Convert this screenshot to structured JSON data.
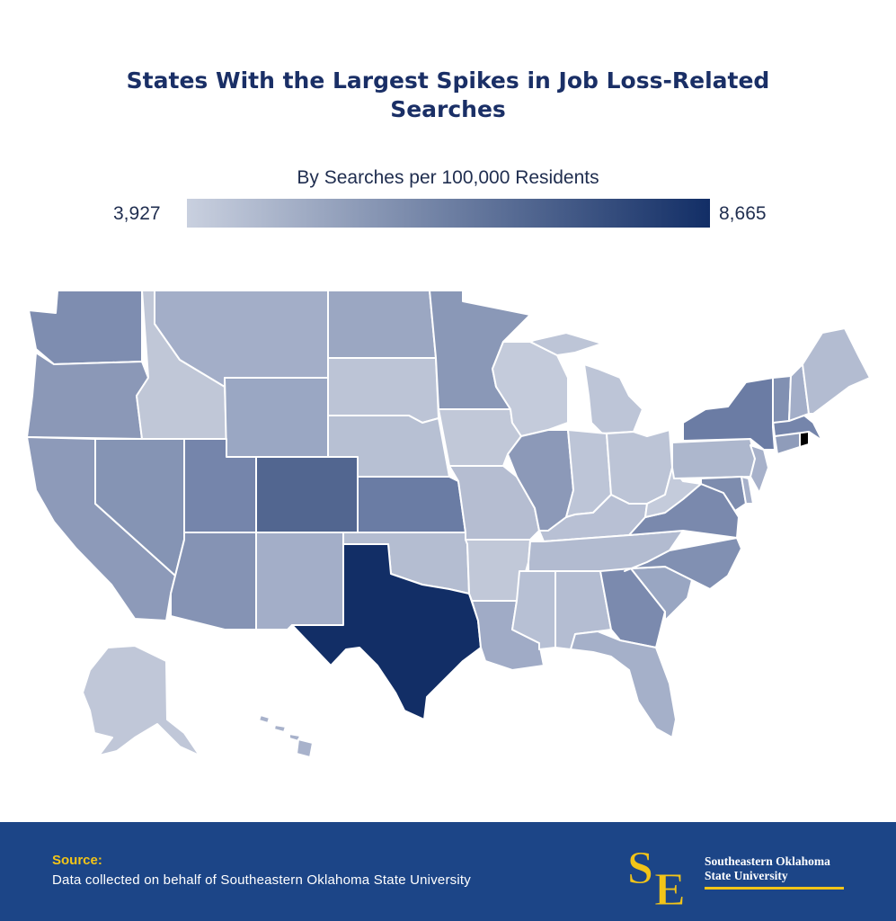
{
  "title": {
    "line1": "States With the Largest Spikes in Job Loss-Related",
    "line2": "Searches"
  },
  "legend": {
    "label": "By Searches per 100,000 Residents",
    "min": "3,927",
    "max": "8,665",
    "color_low": "#c9d0df",
    "color_high": "#122e66"
  },
  "chart_data": {
    "type": "choropleth",
    "metric": "Searches per 100,000 Residents",
    "range": [
      3927,
      8665
    ],
    "highest": "Texas",
    "states": {
      "WA": "#7e8db0",
      "OR": "#8b98b7",
      "CA": "#8d9ab9",
      "NV": "#8594b4",
      "ID": "#c0c7d7",
      "MT": "#a3aec8",
      "WY": "#9aa7c3",
      "UT": "#7585ab",
      "AZ": "#8593b4",
      "CO": "#526690",
      "NM": "#a3aec8",
      "ND": "#9ba7c2",
      "SD": "#bcc4d6",
      "NE": "#b7c0d3",
      "KS": "#6a7ca4",
      "OK": "#b4bdd1",
      "TX": "#122e66",
      "MN": "#8a98b7",
      "IA": "#c1c8d8",
      "MO": "#b5bdd1",
      "AR": "#c1c8d8",
      "LA": "#a0abc6",
      "WI": "#c4cbdb",
      "IL": "#8c99b8",
      "MI": "#bdc5d7",
      "IN": "#bdc5d7",
      "OH": "#bcc4d6",
      "KY": "#b8c0d4",
      "TN": "#b2bbd0",
      "MS": "#b7c0d4",
      "AL": "#b4bdd2",
      "GA": "#7b8aae",
      "FL": "#a5b0c9",
      "SC": "#99a6c2",
      "NC": "#8190b2",
      "VA": "#7a89ad",
      "WV": "#c4cbdb",
      "PA": "#adb7cd",
      "NY": "#6b7ca4",
      "ME": "#b3bcd1",
      "VT": "#8190b2",
      "NH": "#a3aec8",
      "MA": "#7585ab",
      "CT": "#8f9cba",
      "NJ": "#a7b1ca",
      "MD": "#7d8cae",
      "DE": "#a7b1ca",
      "AK": "#c0c7d8",
      "HI": "#a8b2cb"
    }
  },
  "footer": {
    "source_label": "Source:",
    "source_text": "Data collected on behalf of Southeastern Oklahoma State University",
    "logo_line1": "Southeastern Oklahoma",
    "logo_line2": "State University",
    "logo_mark": "SE"
  }
}
